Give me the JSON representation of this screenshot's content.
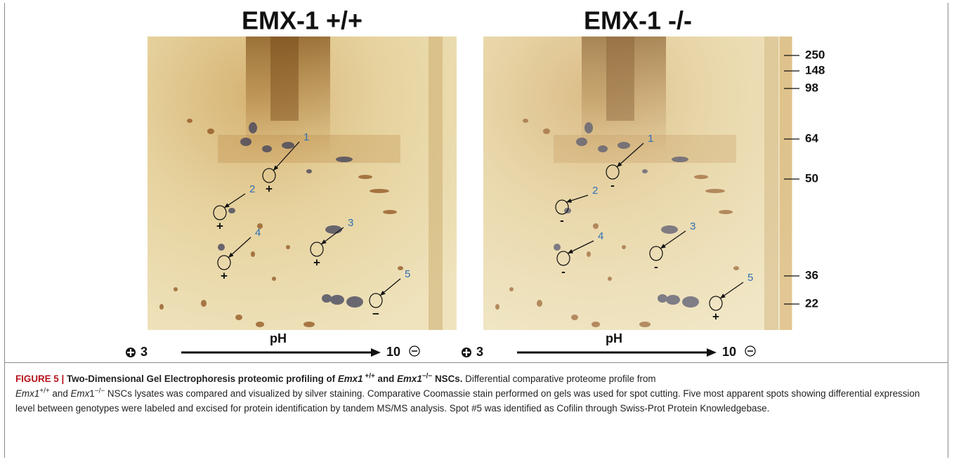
{
  "figure": {
    "gels": [
      {
        "title": "EMX-1 +/+",
        "spots": [
          {
            "number": "1",
            "sign": "+"
          },
          {
            "number": "2",
            "sign": "+"
          },
          {
            "number": "3",
            "sign": "+"
          },
          {
            "number": "4",
            "sign": "+"
          },
          {
            "number": "5",
            "sign": "−"
          }
        ]
      },
      {
        "title": "EMX-1 -/-",
        "spots": [
          {
            "number": "1",
            "sign": "-"
          },
          {
            "number": "2",
            "sign": "-"
          },
          {
            "number": "3",
            "sign": "-"
          },
          {
            "number": "4",
            "sign": "-"
          },
          {
            "number": "5",
            "sign": "+"
          }
        ]
      }
    ],
    "markers": [
      250,
      148,
      98,
      64,
      50,
      36,
      22
    ],
    "ph_axis": {
      "label": "pH",
      "low": "3",
      "high": "10"
    },
    "caption": {
      "title": [
        "FIGURE 5 | ",
        "Two-Dimensional Gel Electrophoresis proteomic profiling of ",
        "Emx1",
        " +/+",
        " and ",
        "Emx1",
        "−/−",
        " NSCs."
      ],
      "body": [
        " Differential comparative proteome profile from ",
        "Emx1",
        "+/+",
        " and ",
        "Emx",
        "1",
        "−/−",
        " NSCs lysates was compared and visualized by silver staining. Comparative Coomassie stain performed on gels was used for spot cutting. Five most apparent spots showing differential expression level between genotypes were labeled and excised for protein identification by tandem MS/MS analysis. Spot #5 was identified as Cofilin through Swiss-Prot Protein Knowledgebase."
      ]
    }
  }
}
